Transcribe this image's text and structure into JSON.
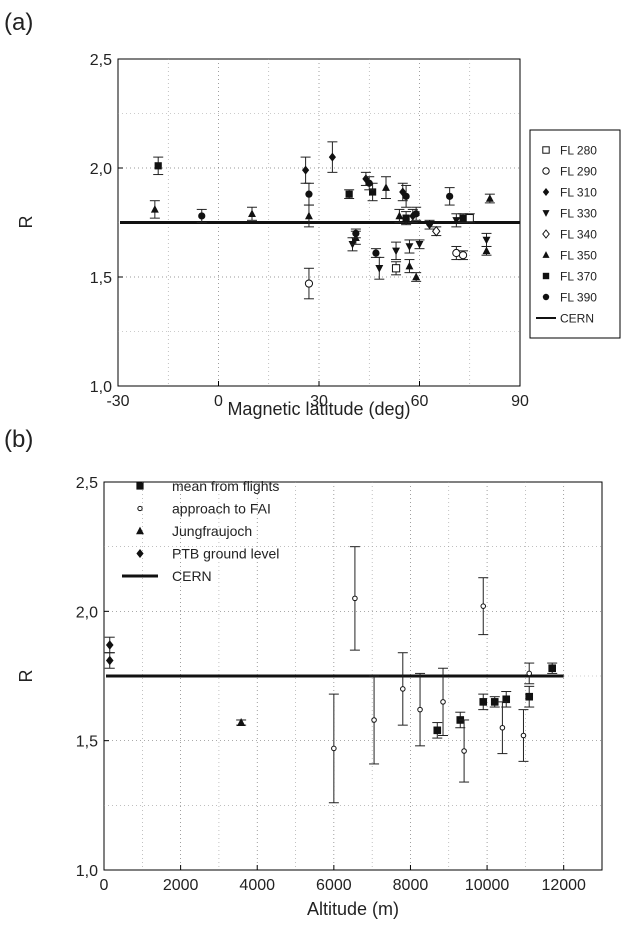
{
  "chart_data": [
    {
      "panel_label": "(a)",
      "type": "scatter",
      "xlabel": "Magnetic latitude (deg)",
      "ylabel": "R",
      "xlim": [
        -30,
        90
      ],
      "ylim": [
        1.0,
        2.5
      ],
      "xticks": [
        "-30",
        "0",
        "30",
        "60",
        "90"
      ],
      "yticks": [
        "1,0",
        "1,5",
        "2,0",
        "2,5"
      ],
      "grid": "dotted",
      "legend_position": "right",
      "reference_line": {
        "name": "CERN",
        "y": 1.75
      },
      "series": [
        {
          "name": "FL 280",
          "marker": "square-open",
          "points": [
            [
              53,
              1.54,
              0.03
            ],
            [
              75,
              1.77,
              0.02
            ]
          ]
        },
        {
          "name": "FL 290",
          "marker": "circle-open",
          "points": [
            [
              27,
              1.47,
              0.07
            ],
            [
              71,
              1.61,
              0.03
            ],
            [
              73,
              1.6,
              0.02
            ]
          ]
        },
        {
          "name": "FL 310",
          "marker": "diamond",
          "points": [
            [
              26,
              1.99,
              0.06
            ],
            [
              34,
              2.05,
              0.07
            ],
            [
              44,
              1.95,
              0.03
            ],
            [
              55,
              1.89,
              0.04
            ],
            [
              58,
              1.78,
              0.03
            ],
            [
              63,
              1.74,
              0.02
            ]
          ]
        },
        {
          "name": "FL 330",
          "marker": "triangle-down",
          "points": [
            [
              40,
              1.65,
              0.03
            ],
            [
              48,
              1.54,
              0.05
            ],
            [
              53,
              1.62,
              0.04
            ],
            [
              57,
              1.64,
              0.03
            ],
            [
              60,
              1.65,
              0.02
            ],
            [
              71,
              1.76,
              0.03
            ],
            [
              80,
              1.67,
              0.03
            ]
          ]
        },
        {
          "name": "FL 340",
          "marker": "diamond-open",
          "points": [
            [
              65,
              1.71,
              0.02
            ]
          ]
        },
        {
          "name": "FL 350",
          "marker": "triangle",
          "points": [
            [
              -19,
              1.81,
              0.04
            ],
            [
              10,
              1.79,
              0.03
            ],
            [
              27,
              1.78,
              0.05
            ],
            [
              41,
              1.68,
              0.03
            ],
            [
              50,
              1.91,
              0.05
            ],
            [
              54,
              1.78,
              0.03
            ],
            [
              57,
              1.55,
              0.03
            ],
            [
              59,
              1.5,
              0.02
            ],
            [
              80,
              1.62,
              0.02
            ],
            [
              81,
              1.86,
              0.02
            ]
          ]
        },
        {
          "name": "FL 370",
          "marker": "square",
          "points": [
            [
              -18,
              2.01,
              0.04
            ],
            [
              39,
              1.88,
              0.02
            ],
            [
              46,
              1.89,
              0.04
            ],
            [
              56,
              1.77,
              0.03
            ],
            [
              73,
              1.77,
              0.02
            ]
          ]
        },
        {
          "name": "FL 390",
          "marker": "circle",
          "points": [
            [
              -5,
              1.78,
              0.03
            ],
            [
              27,
              1.88,
              0.05
            ],
            [
              41,
              1.7,
              0.02
            ],
            [
              45,
              1.93,
              0.03
            ],
            [
              47,
              1.61,
              0.02
            ],
            [
              56,
              1.87,
              0.05
            ],
            [
              59,
              1.79,
              0.03
            ],
            [
              69,
              1.87,
              0.04
            ]
          ]
        }
      ],
      "legend": [
        "FL 280",
        "FL 290",
        "FL 310",
        "FL 330",
        "FL 340",
        "FL 350",
        "FL 370",
        "FL 390",
        "CERN"
      ]
    },
    {
      "panel_label": "(b)",
      "type": "scatter",
      "xlabel": "Altitude (m)",
      "ylabel": "R",
      "xlim": [
        0,
        13000
      ],
      "ylim": [
        1.0,
        2.5
      ],
      "xticks": [
        "0",
        "2000",
        "4000",
        "6000",
        "8000",
        "10000",
        "12000"
      ],
      "yticks": [
        "1,0",
        "1,5",
        "2,0",
        "2,5"
      ],
      "grid": "dotted",
      "legend_position": "top-left",
      "reference_line": {
        "name": "CERN",
        "y": 1.75
      },
      "series": [
        {
          "name": "mean from flights",
          "marker": "square",
          "points": [
            [
              8700,
              1.54,
              0.03
            ],
            [
              9300,
              1.58,
              0.03
            ],
            [
              9900,
              1.65,
              0.03
            ],
            [
              10200,
              1.65,
              0.02
            ],
            [
              10500,
              1.66,
              0.03
            ],
            [
              11100,
              1.67,
              0.04
            ],
            [
              11700,
              1.78,
              0.02
            ]
          ]
        },
        {
          "name": "approach to FAI",
          "marker": "circle-small-open",
          "points": [
            [
              6000,
              1.47,
              0.21
            ],
            [
              6550,
              2.05,
              0.2
            ],
            [
              7050,
              1.58,
              0.17
            ],
            [
              7800,
              1.7,
              0.14
            ],
            [
              8250,
              1.62,
              0.14
            ],
            [
              8850,
              1.65,
              0.13
            ],
            [
              9400,
              1.46,
              0.12
            ],
            [
              9900,
              2.02,
              0.11
            ],
            [
              10400,
              1.55,
              0.1
            ],
            [
              10950,
              1.52,
              0.1
            ],
            [
              11100,
              1.76,
              0.04
            ]
          ]
        },
        {
          "name": "Jungfraujoch",
          "marker": "triangle",
          "points": [
            [
              3580,
              1.57,
              0.01
            ]
          ]
        },
        {
          "name": "PTB ground level",
          "marker": "diamond",
          "points": [
            [
              150,
              1.87,
              0.03
            ],
            [
              150,
              1.81,
              0.03
            ]
          ]
        }
      ],
      "legend": [
        "mean from flights",
        "approach to FAI",
        "Jungfraujoch",
        "PTB ground level",
        "CERN"
      ]
    }
  ]
}
